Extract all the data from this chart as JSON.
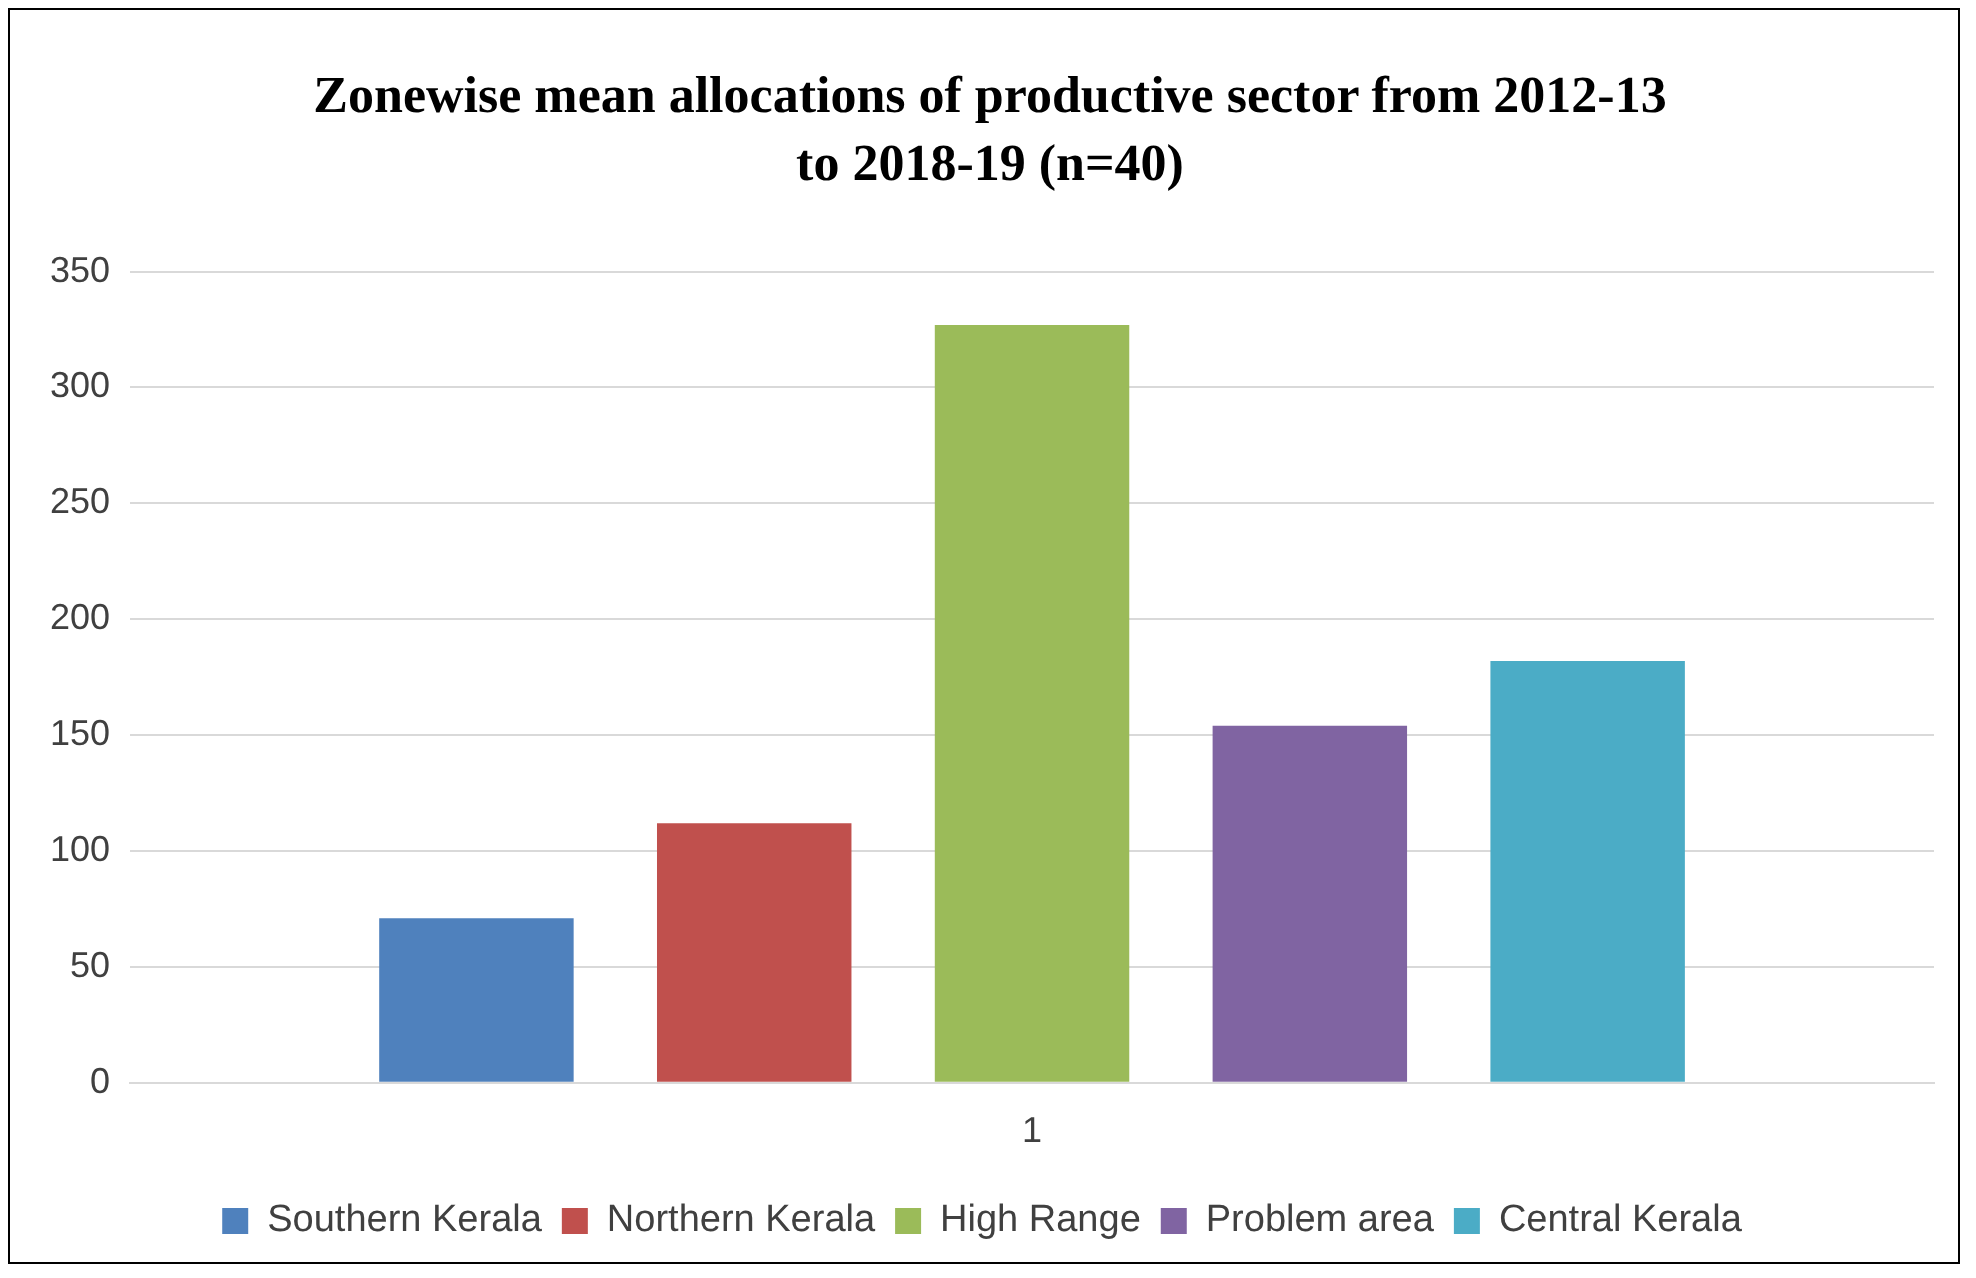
{
  "chart_data": {
    "type": "bar",
    "title": "Zonewise mean allocations of productive sector from 2012-13 to 2018-19 (n=40)",
    "categories": [
      "1"
    ],
    "series": [
      {
        "name": "Southern Kerala",
        "color": "#4f81bd",
        "values": [
          71
        ]
      },
      {
        "name": "Northern Kerala",
        "color": "#c0504d",
        "values": [
          112
        ]
      },
      {
        "name": "High Range",
        "color": "#9bbb59",
        "values": [
          327
        ]
      },
      {
        "name": "Problem area",
        "color": "#8064a2",
        "values": [
          154
        ]
      },
      {
        "name": "Central Kerala",
        "color": "#4bacc6",
        "values": [
          182
        ]
      }
    ],
    "ylim": [
      0,
      350
    ],
    "yticks": [
      0,
      50,
      100,
      150,
      200,
      250,
      300,
      350
    ],
    "grid": "y",
    "legend": "bottom"
  }
}
